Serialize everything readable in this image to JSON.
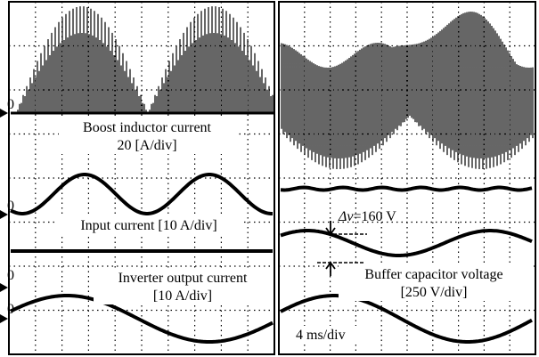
{
  "left": {
    "zero_labels": [
      "0",
      "0",
      "0",
      "0"
    ],
    "annotations": [
      "Boost inductor current",
      "20 [A/div]",
      "Input current [10 A/div]",
      "Inverter output current",
      "[10 A/div]"
    ]
  },
  "right": {
    "delta_symbol": "Δv",
    "delta_value": "=160 V",
    "annotations": [
      "Buffer capacitor voltage",
      "[250 V/div]",
      "4 ms/div"
    ]
  }
}
